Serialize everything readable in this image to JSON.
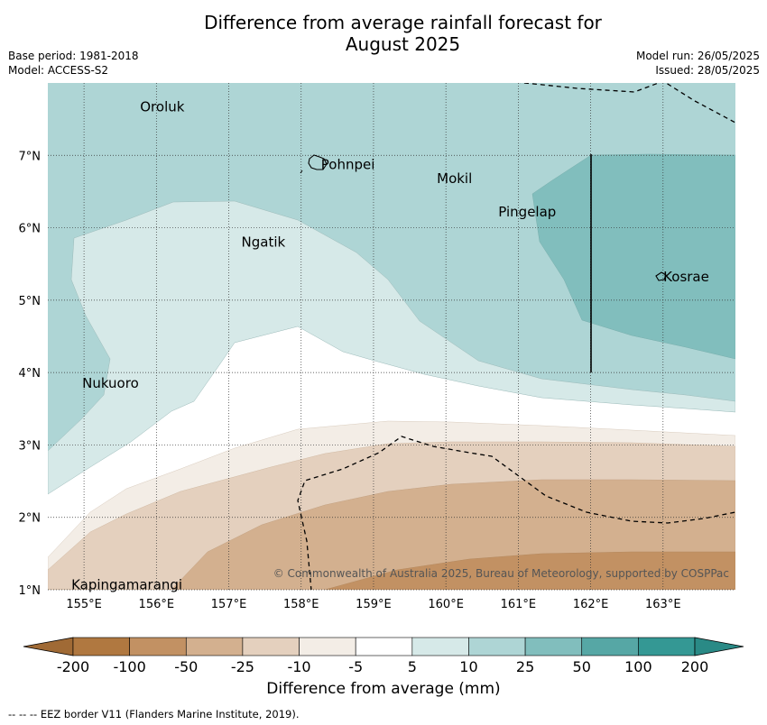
{
  "title_line1": "Difference from average rainfall forecast for",
  "title_line2": "August 2025",
  "meta_left": [
    "Base period: 1981-2018",
    "Model: ACCESS-S2"
  ],
  "meta_right": [
    "Model run: 26/05/2025",
    "Issued: 28/05/2025"
  ],
  "map": {
    "lon_range": [
      154.5,
      164.0
    ],
    "lat_range": [
      1.0,
      8.0
    ],
    "lon_ticks": [
      155,
      156,
      157,
      158,
      159,
      160,
      161,
      162,
      163
    ],
    "lon_tick_labels": [
      "155°E",
      "156°E",
      "157°E",
      "158°E",
      "159°E",
      "160°E",
      "161°E",
      "162°E",
      "163°E"
    ],
    "lat_ticks": [
      1,
      2,
      3,
      4,
      5,
      6,
      7
    ],
    "lat_tick_labels": [
      "1°N",
      "2°N",
      "3°N",
      "4°N",
      "5°N",
      "6°N",
      "7°N"
    ],
    "grid": true,
    "places": [
      {
        "name": "Oroluk",
        "lon": 155.75,
        "lat": 7.67
      },
      {
        "name": "Pohnpei",
        "lon": 158.25,
        "lat": 6.87
      },
      {
        "name": "Mokil",
        "lon": 159.85,
        "lat": 6.68
      },
      {
        "name": "Pingelap",
        "lon": 160.7,
        "lat": 6.22
      },
      {
        "name": "Ngatik",
        "lon": 157.15,
        "lat": 5.8
      },
      {
        "name": "Kosrae",
        "lon": 162.98,
        "lat": 5.32
      },
      {
        "name": "Nukuoro",
        "lon": 154.95,
        "lat": 3.85
      },
      {
        "name": "Kapingamarangi",
        "lon": 154.8,
        "lat": 1.07
      }
    ],
    "copyright": "© Commonwealth of Australia 2025, Bureau of Meteorology, supported by COSPPac"
  },
  "colorbar": {
    "tick_labels": [
      "-200",
      "-100",
      "-50",
      "-25",
      "-10",
      "-5",
      "5",
      "10",
      "25",
      "50",
      "100",
      "200"
    ],
    "colors": [
      "#b07840",
      "#c29163",
      "#d3b08f",
      "#e4d0be",
      "#f3ede6",
      "#ffffff",
      "#d6e9e8",
      "#aed5d5",
      "#81bebd",
      "#56a7a5",
      "#349894"
    ],
    "extend_low_color": "#a06a35",
    "extend_high_color": "#2a8a86",
    "label": "Difference from average (mm)"
  },
  "footnote": "--  --  -- EEZ border V11 (Flanders Marine Institute, 2019)."
}
